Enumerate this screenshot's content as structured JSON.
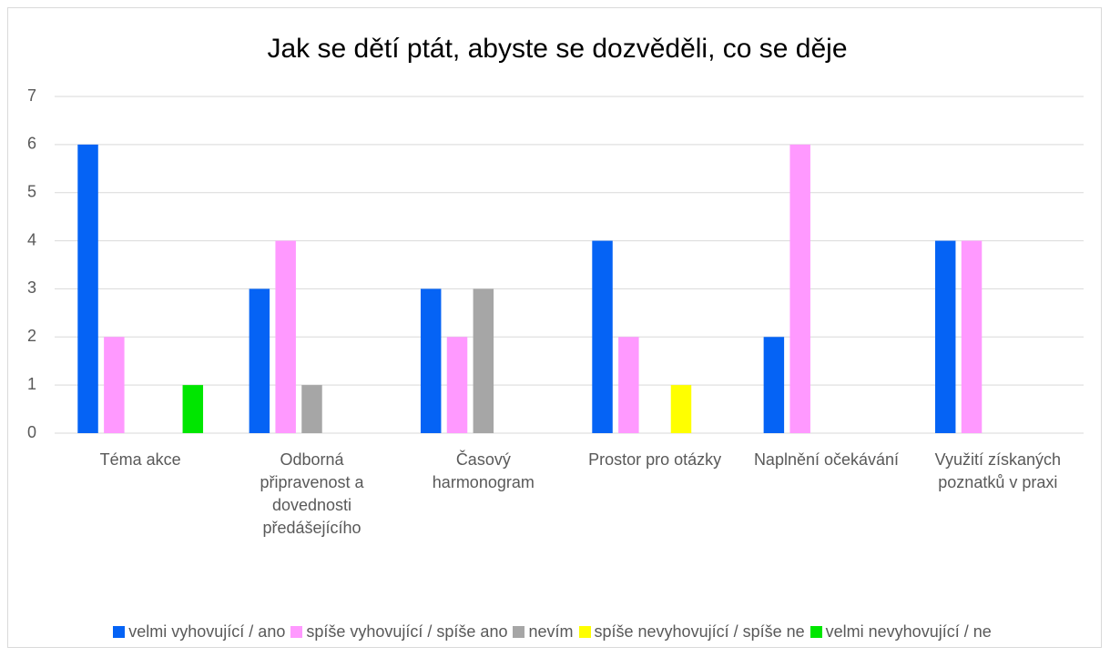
{
  "chart_data": {
    "type": "bar",
    "title": "Jak se dětí ptát, abyste se dozvěděli, co se děje",
    "categories": [
      "Téma akce",
      "Odborná připravenost a dovednosti předášejícího",
      "Časový harmonogram",
      "Prostor pro otázky",
      "Naplnění očekávání",
      "Využití získaných poznatků v praxi"
    ],
    "series": [
      {
        "name": "velmi vyhovující / ano",
        "color": "#0563f5",
        "values": [
          6,
          3,
          3,
          4,
          2,
          4
        ]
      },
      {
        "name": "spíše vyhovující / spíše ano",
        "color": "#ff99ff",
        "values": [
          2,
          4,
          2,
          2,
          6,
          4
        ]
      },
      {
        "name": "nevím",
        "color": "#a6a6a6",
        "values": [
          0,
          1,
          3,
          0,
          0,
          0
        ]
      },
      {
        "name": "spíše nevyhovující / spíše ne",
        "color": "#ffff00",
        "values": [
          0,
          0,
          0,
          1,
          0,
          0
        ]
      },
      {
        "name": "velmi nevyhovující / ne",
        "color": "#00e600",
        "values": [
          1,
          0,
          0,
          0,
          0,
          0
        ]
      }
    ],
    "ylim": [
      0,
      7
    ],
    "yticks": [
      0,
      1,
      2,
      3,
      4,
      5,
      6,
      7
    ],
    "grid": true,
    "legend": "bottom"
  }
}
